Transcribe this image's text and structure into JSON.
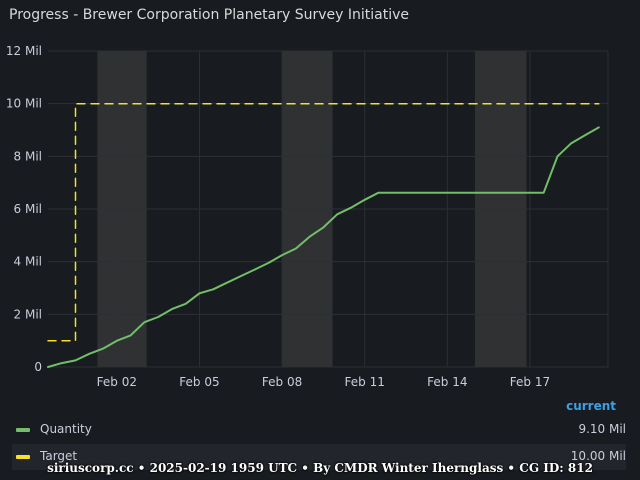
{
  "panel": {
    "title": "Progress - Brewer Corporation Planetary Survey Initiative"
  },
  "colors": {
    "background": "#181b1f",
    "grid": "#2c3035",
    "shade": "#2f3133",
    "quantity": "#73bf69",
    "target": "#fade2a",
    "axis_text": "#ccccdc",
    "legend_header": "#3e9fe3"
  },
  "chart_data": {
    "type": "line",
    "title": "Progress - Brewer Corporation Planetary Survey Initiative",
    "xlabel": "",
    "ylabel": "",
    "x_range": [
      "2025-01-30 12:00",
      "2025-02-19 20:00"
    ],
    "ylim": [
      0,
      12000000
    ],
    "y_ticks": [
      {
        "value": 0,
        "label": "0"
      },
      {
        "value": 2000000,
        "label": "2 Mil"
      },
      {
        "value": 4000000,
        "label": "4 Mil"
      },
      {
        "value": 6000000,
        "label": "6 Mil"
      },
      {
        "value": 8000000,
        "label": "8 Mil"
      },
      {
        "value": 10000000,
        "label": "10 Mil"
      },
      {
        "value": 12000000,
        "label": "12 Mil"
      }
    ],
    "x_ticks": [
      {
        "value": "2025-02-02",
        "label": "Feb 02"
      },
      {
        "value": "2025-02-05",
        "label": "Feb 05"
      },
      {
        "value": "2025-02-08",
        "label": "Feb 08"
      },
      {
        "value": "2025-02-11",
        "label": "Feb 11"
      },
      {
        "value": "2025-02-14",
        "label": "Feb 14"
      },
      {
        "value": "2025-02-17",
        "label": "Feb 17"
      }
    ],
    "shaded_periods": [
      [
        "2025-02-01 07:00",
        "2025-02-03 02:00"
      ],
      [
        "2025-02-08 00:00",
        "2025-02-09 20:00"
      ],
      [
        "2025-02-15 00:00",
        "2025-02-16 21:00"
      ]
    ],
    "grid": true,
    "legend_position": "bottom",
    "legend_header": "current",
    "series": [
      {
        "name": "Quantity",
        "current": "9.10 Mil",
        "color": "#73bf69",
        "style": "solid",
        "points": [
          [
            "2025-01-30 12:00",
            0
          ],
          [
            "2025-01-31 00:00",
            150000
          ],
          [
            "2025-01-31 12:00",
            250000
          ],
          [
            "2025-02-01 00:00",
            500000
          ],
          [
            "2025-02-01 12:00",
            700000
          ],
          [
            "2025-02-02 00:00",
            1000000
          ],
          [
            "2025-02-02 12:00",
            1200000
          ],
          [
            "2025-02-03 00:00",
            1700000
          ],
          [
            "2025-02-03 12:00",
            1900000
          ],
          [
            "2025-02-04 00:00",
            2200000
          ],
          [
            "2025-02-04 12:00",
            2400000
          ],
          [
            "2025-02-05 00:00",
            2800000
          ],
          [
            "2025-02-05 12:00",
            2950000
          ],
          [
            "2025-02-06 00:00",
            3200000
          ],
          [
            "2025-02-06 12:00",
            3450000
          ],
          [
            "2025-02-07 00:00",
            3700000
          ],
          [
            "2025-02-07 12:00",
            3950000
          ],
          [
            "2025-02-08 00:00",
            4250000
          ],
          [
            "2025-02-08 12:00",
            4500000
          ],
          [
            "2025-02-09 00:00",
            4950000
          ],
          [
            "2025-02-09 12:00",
            5300000
          ],
          [
            "2025-02-10 00:00",
            5800000
          ],
          [
            "2025-02-10 12:00",
            6050000
          ],
          [
            "2025-02-11 00:00",
            6350000
          ],
          [
            "2025-02-11 12:00",
            6620000
          ],
          [
            "2025-02-12 00:00",
            6620000
          ],
          [
            "2025-02-14 00:00",
            6620000
          ],
          [
            "2025-02-16 00:00",
            6620000
          ],
          [
            "2025-02-17 12:00",
            6620000
          ],
          [
            "2025-02-18 00:00",
            8000000
          ],
          [
            "2025-02-18 12:00",
            8500000
          ],
          [
            "2025-02-19 00:00",
            8800000
          ],
          [
            "2025-02-19 12:00",
            9100000
          ]
        ]
      },
      {
        "name": "Target",
        "current": "10.00 Mil",
        "color": "#fade2a",
        "style": "dashed",
        "points": [
          [
            "2025-01-30 12:00",
            1000000
          ],
          [
            "2025-01-31 12:00",
            1000000
          ],
          [
            "2025-01-31 12:00",
            10000000
          ],
          [
            "2025-02-19 12:00",
            10000000
          ]
        ]
      }
    ]
  },
  "footer": {
    "text": "siriuscorp.cc • 2025-02-19 1959 UTC • By CMDR Winter Ihernglass • CG ID: 812"
  }
}
